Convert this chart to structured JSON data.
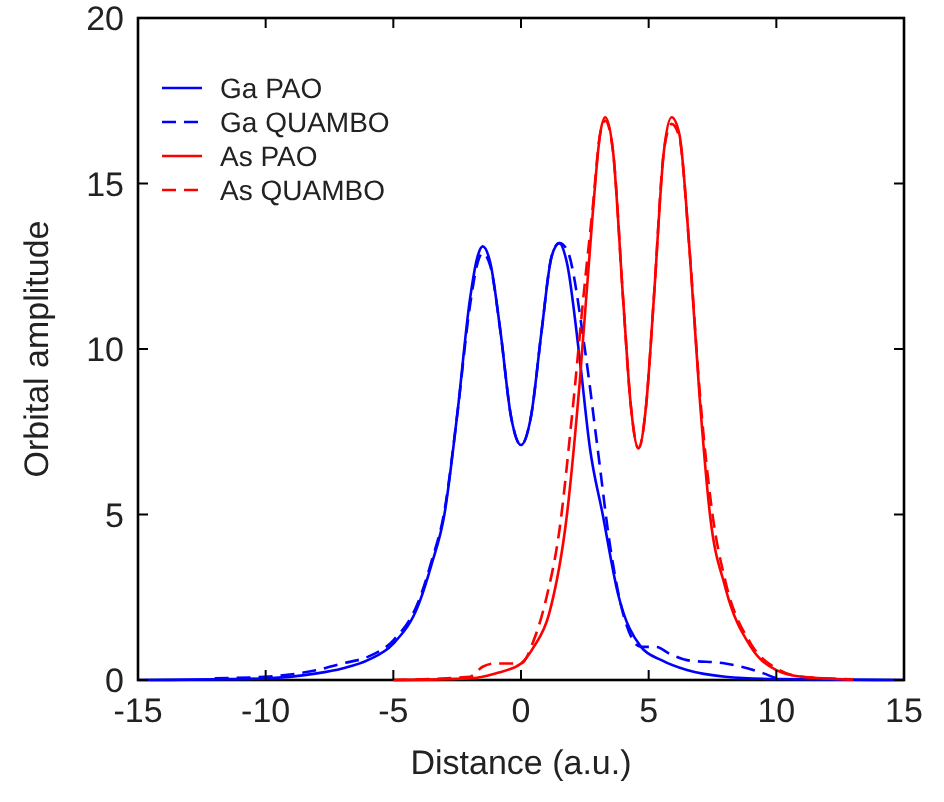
{
  "chart_data": {
    "type": "line",
    "xlabel": "Distance (a.u.)",
    "ylabel": "Orbital amplitude",
    "xlim": [
      -15,
      15
    ],
    "ylim": [
      0,
      20
    ],
    "xticks": [
      -15,
      -10,
      -5,
      0,
      5,
      10,
      15
    ],
    "yticks": [
      0,
      5,
      10,
      15,
      20
    ],
    "grid": false,
    "legend": "top left",
    "series": [
      {
        "name": "Ga PAO",
        "color": "#0000ff",
        "line_style": "solid",
        "x": [
          -15,
          -12,
          -10,
          -8,
          -7,
          -6,
          -5,
          -4,
          -3.5,
          -3,
          -2.5,
          -2,
          -1.7,
          -1.5,
          -1.2,
          -0.8,
          -0.4,
          0,
          0.4,
          0.8,
          1.2,
          1.5,
          1.8,
          2.3,
          2.7,
          3.2,
          3.8,
          4.7,
          5.5,
          6.5,
          8,
          10,
          15
        ],
        "values": [
          0,
          0.02,
          0.05,
          0.2,
          0.35,
          0.6,
          1.1,
          2.3,
          3.5,
          5,
          8,
          11.5,
          12.8,
          13.1,
          12.6,
          10.5,
          8,
          7.1,
          8,
          10.5,
          12.8,
          13.2,
          12.6,
          9.7,
          7,
          5,
          2.6,
          1,
          0.6,
          0.3,
          0.1,
          0.03,
          0
        ]
      },
      {
        "name": "Ga QUAMBO",
        "color": "#0000ff",
        "line_style": "dashed",
        "x": [
          -12,
          -10,
          -8,
          -7,
          -6,
          -5,
          -4,
          -3.5,
          -3,
          -2.5,
          -2,
          -1.7,
          -1.5,
          -1.2,
          -0.8,
          -0.4,
          0,
          0.4,
          0.8,
          1.2,
          1.5,
          1.8,
          2.5,
          3,
          3.5,
          4,
          4.7,
          5.3,
          5.8,
          6.5,
          8,
          9.5,
          10
        ],
        "values": [
          0.05,
          0.1,
          0.3,
          0.5,
          0.7,
          1.2,
          2.4,
          3.6,
          5.1,
          8,
          11.3,
          12.6,
          12.9,
          12.5,
          10.5,
          8,
          7.1,
          8,
          10.5,
          12.8,
          13.2,
          13,
          10,
          7,
          4,
          2,
          1,
          1,
          0.8,
          0.6,
          0.5,
          0.2,
          0.05
        ]
      },
      {
        "name": "As PAO",
        "color": "#ff0000",
        "line_style": "solid",
        "x": [
          -5,
          -2,
          -1,
          0,
          0.5,
          1.1,
          1.8,
          2.3,
          2.8,
          3.1,
          3.3,
          3.6,
          4,
          4.3,
          4.6,
          4.9,
          5.2,
          5.6,
          5.9,
          6.2,
          6.6,
          7,
          7.4,
          8,
          9,
          10,
          11,
          13
        ],
        "values": [
          0,
          0.05,
          0.2,
          0.5,
          1,
          2,
          5,
          9,
          14,
          16.5,
          17,
          16,
          11.5,
          8.3,
          7,
          8.3,
          11.5,
          16,
          17,
          16.5,
          13,
          8.5,
          5,
          2.8,
          1,
          0.3,
          0.1,
          0.02
        ]
      },
      {
        "name": "As QUAMBO",
        "color": "#ff0000",
        "line_style": "dashed",
        "x": [
          -5,
          -2,
          -1.5,
          -1,
          0,
          0.5,
          1,
          1.5,
          2,
          2.5,
          2.8,
          3.1,
          3.3,
          3.6,
          4,
          4.3,
          4.6,
          4.9,
          5.2,
          5.6,
          5.9,
          6.2,
          6.6,
          7,
          7.5,
          8,
          9,
          10,
          11,
          13
        ],
        "values": [
          0,
          0.1,
          0.4,
          0.5,
          0.5,
          1.2,
          2.5,
          4.5,
          8,
          12,
          14.2,
          16.5,
          16.9,
          16,
          11.5,
          8.3,
          7,
          8.3,
          11.5,
          16,
          16.8,
          16.4,
          13,
          8.7,
          5,
          3,
          1.1,
          0.35,
          0.1,
          0.02
        ]
      }
    ]
  }
}
